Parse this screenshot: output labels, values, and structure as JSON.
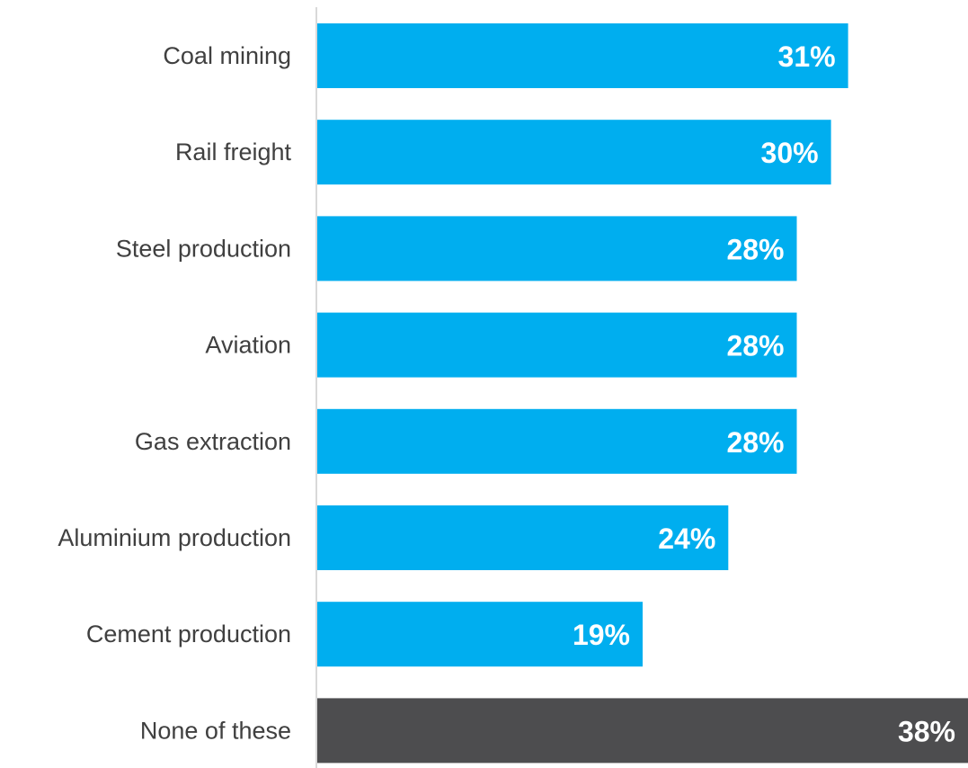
{
  "chart_data": {
    "type": "bar",
    "orientation": "horizontal",
    "title": "",
    "xlabel": "",
    "ylabel": "",
    "grid": false,
    "categories": [
      "Coal mining",
      "Rail freight",
      "Steel production",
      "Aviation",
      "Gas extraction",
      "Aluminium production",
      "Cement production",
      "None of these"
    ],
    "values": [
      31,
      30,
      28,
      28,
      28,
      24,
      19,
      38
    ],
    "value_labels": [
      "31%",
      "30%",
      "28%",
      "28%",
      "28%",
      "24%",
      "19%",
      "38%"
    ],
    "colors": [
      "#00AEEF",
      "#00AEEF",
      "#00AEEF",
      "#00AEEF",
      "#00AEEF",
      "#00AEEF",
      "#00AEEF",
      "#4D4D4F"
    ],
    "xlim": [
      0,
      38
    ],
    "axis_color": "#D9D9D9",
    "label_color": "#404040",
    "value_label_color": "#FFFFFF"
  }
}
